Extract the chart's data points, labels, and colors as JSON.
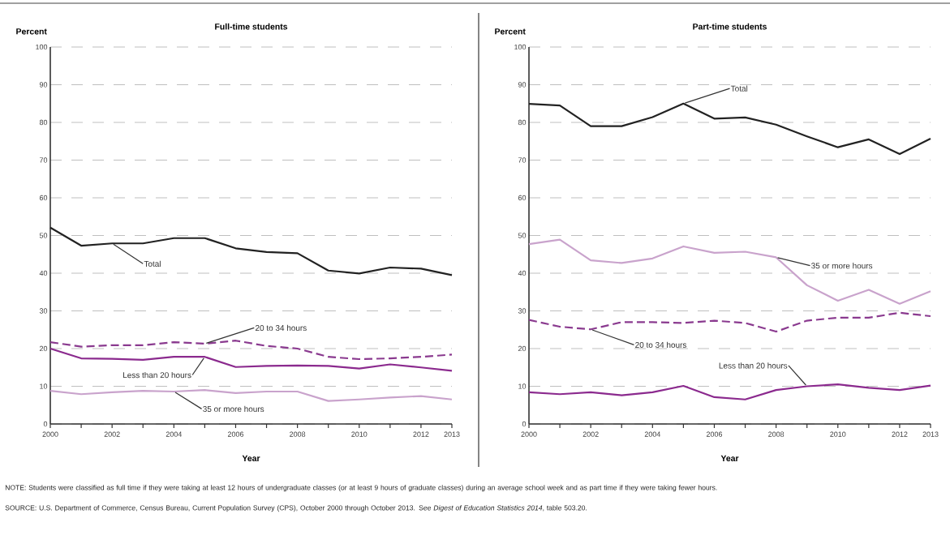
{
  "chart_data": [
    {
      "type": "line",
      "title": "Full-time students",
      "ylabel": "Percent",
      "xlabel": "Year",
      "x": [
        2000,
        2001,
        2002,
        2003,
        2004,
        2005,
        2006,
        2007,
        2008,
        2009,
        2010,
        2011,
        2012,
        2013
      ],
      "xlim": [
        2000,
        2013
      ],
      "ylim": [
        0,
        100
      ],
      "xticks": [
        2000,
        {
          "value": 2001,
          "label": null
        },
        2002,
        {
          "value": 2003,
          "label": null
        },
        2004,
        {
          "value": 2005,
          "label": null
        },
        2006,
        {
          "value": 2007,
          "label": null
        },
        2008,
        {
          "value": 2009,
          "label": null
        },
        2010,
        {
          "value": 2011,
          "label": null
        },
        2012,
        2013
      ],
      "yticks": [
        0,
        10,
        20,
        30,
        40,
        50,
        60,
        70,
        80,
        90,
        100
      ],
      "grid": "y",
      "series": [
        {
          "name": "Total",
          "color": "#222222",
          "line_style": "solid",
          "values": [
            52.1,
            47.3,
            47.9,
            47.9,
            49.3,
            49.3,
            46.6,
            45.6,
            45.3,
            40.7,
            39.9,
            41.5,
            41.2,
            39.5
          ]
        },
        {
          "name": "20 to 34 hours",
          "color": "#8a3a8f",
          "line_style": "dashed",
          "values": [
            21.7,
            20.5,
            20.9,
            20.9,
            21.7,
            21.3,
            22.1,
            20.7,
            20.0,
            17.8,
            17.2,
            17.4,
            17.8,
            18.4
          ]
        },
        {
          "name": "Less than 20 hours",
          "color": "#8b2a8e",
          "line_style": "solid",
          "values": [
            20.0,
            17.4,
            17.3,
            17.0,
            17.8,
            17.8,
            15.1,
            15.4,
            15.5,
            15.4,
            14.7,
            15.8,
            15.0,
            14.1
          ]
        },
        {
          "name": "35 or more hours",
          "color": "#c9a3cc",
          "line_style": "solid",
          "values": [
            8.8,
            7.9,
            8.4,
            8.8,
            8.6,
            9.0,
            8.2,
            8.6,
            8.6,
            6.1,
            6.5,
            7.0,
            7.4,
            6.5
          ]
        }
      ],
      "annotations": [
        "NOTE: Students were classified as full time if they were taking at least 12 hours of undergraduate classes (or at least 9 hours of graduate classes) during an average school week and as part time if they were taking fewer hours.",
        "SOURCE: U.S. Department of Commerce, Census Bureau, Current Population Survey (CPS), October 2000 through October 2013. See *Digest of Education Statistics 2014*, table 503.20."
      ]
    },
    {
      "type": "line",
      "title": "Part-time students",
      "ylabel": "Percent",
      "xlabel": "Year",
      "x": [
        2000,
        2001,
        2002,
        2003,
        2004,
        2005,
        2006,
        2007,
        2008,
        2009,
        2010,
        2011,
        2012,
        2013
      ],
      "xlim": [
        2000,
        2013
      ],
      "ylim": [
        0,
        100
      ],
      "xticks": [
        2000,
        {
          "value": 2001,
          "label": null
        },
        2002,
        {
          "value": 2003,
          "label": null
        },
        2004,
        {
          "value": 2005,
          "label": null
        },
        2006,
        {
          "value": 2007,
          "label": null
        },
        2008,
        {
          "value": 2009,
          "label": null
        },
        2010,
        {
          "value": 2011,
          "label": null
        },
        2012,
        2013
      ],
      "yticks": [
        0,
        10,
        20,
        30,
        40,
        50,
        60,
        70,
        80,
        90,
        100
      ],
      "grid": "y",
      "series": [
        {
          "name": "Total",
          "color": "#222222",
          "line_style": "solid",
          "values": [
            84.9,
            84.5,
            79.0,
            79.0,
            81.4,
            85.0,
            81.0,
            81.3,
            79.4,
            76.3,
            73.4,
            75.5,
            71.6,
            75.7
          ]
        },
        {
          "name": "35 or more hours",
          "color": "#c9a3cc",
          "line_style": "solid",
          "values": [
            47.7,
            48.9,
            43.4,
            42.7,
            43.9,
            47.1,
            45.4,
            45.7,
            44.2,
            36.8,
            32.7,
            35.6,
            31.9,
            35.2
          ]
        },
        {
          "name": "20 to 34 hours",
          "color": "#8a3a8f",
          "line_style": "dashed",
          "values": [
            27.6,
            25.8,
            25.1,
            27.0,
            27.0,
            26.8,
            27.4,
            26.8,
            24.5,
            27.4,
            28.2,
            28.2,
            29.5,
            28.6
          ]
        },
        {
          "name": "Less than 20 hours",
          "color": "#8b2a8e",
          "line_style": "solid",
          "values": [
            8.4,
            7.9,
            8.4,
            7.6,
            8.4,
            10.1,
            7.1,
            6.5,
            9.0,
            10.0,
            10.5,
            9.6,
            9.0,
            10.2
          ]
        }
      ]
    }
  ]
}
